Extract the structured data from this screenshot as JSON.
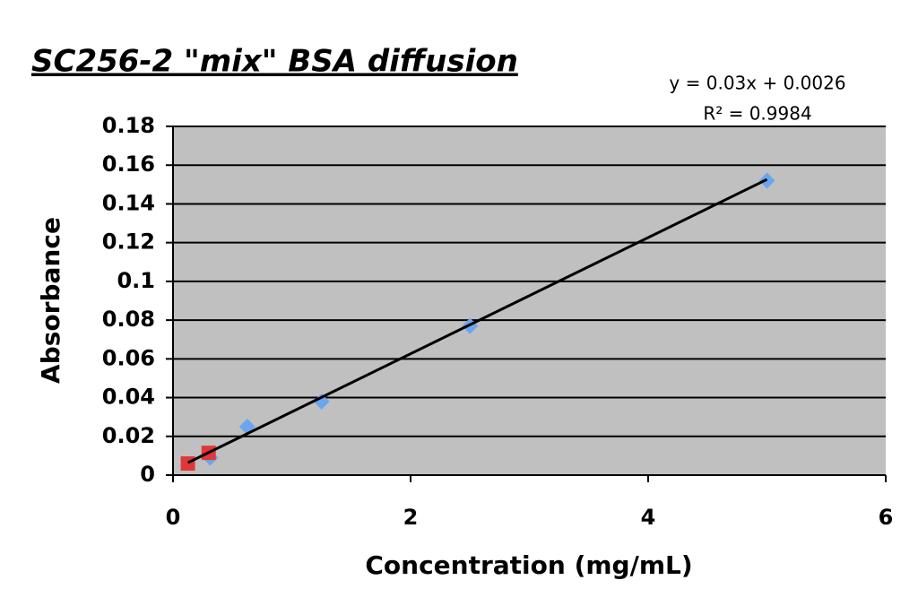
{
  "chart_data": {
    "type": "scatter",
    "title": "SC256-2 \"mix\" BSA diffusion",
    "x_label": "Concentration (mg/mL)",
    "y_label": "Absorbance",
    "annotations": [
      "y = 0.03x + 0.0026",
      "R² = 0.9984"
    ],
    "xlim": [
      0,
      6
    ],
    "xticks": [
      0,
      2,
      4,
      6
    ],
    "ylim": [
      0,
      0.18
    ],
    "yticks": [
      0,
      0.02,
      0.04,
      0.06,
      0.08,
      0.1,
      0.12,
      0.14,
      0.16,
      0.18
    ],
    "grid": true,
    "background": "#c0c0c0",
    "series": [
      {
        "marker": "diamond",
        "color": "#6aa6ee",
        "x": [
          0.3125,
          0.625,
          1.25,
          2.5,
          5
        ],
        "values": [
          0.009,
          0.025,
          0.038,
          0.077,
          0.152
        ]
      },
      {
        "marker": "square",
        "color": "#e0383a",
        "x": [
          0.125,
          0.3
        ],
        "values": [
          0.006,
          0.0115
        ]
      },
      {
        "marker": "line",
        "color": "#000000",
        "x": [
          0.125,
          5
        ],
        "values": [
          0.0064,
          0.1526
        ]
      }
    ]
  }
}
